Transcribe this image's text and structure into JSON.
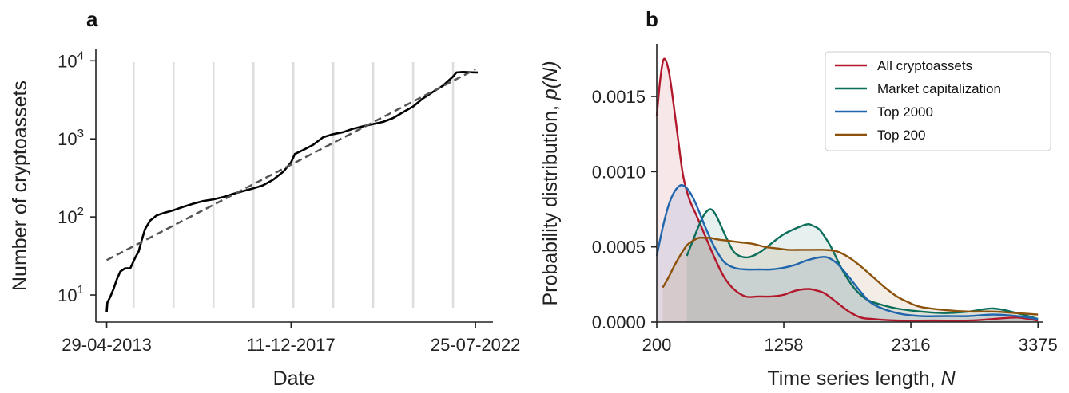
{
  "chart_data": [
    {
      "panel": "a",
      "type": "line",
      "xlabel": "Date",
      "ylabel": "Number of cryptoassets",
      "yscale": "log",
      "ylim": [
        4.5,
        14000
      ],
      "xlim": [
        "2013-01-20",
        "2023-01-01"
      ],
      "xticks": [
        {
          "date": "2013-04-29",
          "label": "29-04-2013"
        },
        {
          "date": "2017-12-11",
          "label": "11-12-2017"
        },
        {
          "date": "2022-07-25",
          "label": "25-07-2022"
        }
      ],
      "yticks": [
        {
          "value": 10,
          "base": "10",
          "exp": "1"
        },
        {
          "value": 100,
          "base": "10",
          "exp": "2"
        },
        {
          "value": 1000,
          "base": "10",
          "exp": "3"
        },
        {
          "value": 10000,
          "base": "10",
          "exp": "4"
        }
      ],
      "vlines_color": "#dddddd",
      "vlines_dates": [
        "2014-01-01",
        "2015-01-01",
        "2016-01-01",
        "2017-01-01",
        "2018-01-01",
        "2019-01-01",
        "2020-01-01",
        "2021-01-01",
        "2022-01-01"
      ],
      "series": [
        {
          "style": "solid",
          "color": "#000000",
          "points": [
            [
              "2013-04-29",
              6
            ],
            [
              "2013-05-05",
              8
            ],
            [
              "2013-06-01",
              9.5
            ],
            [
              "2013-07-01",
              12
            ],
            [
              "2013-08-01",
              16
            ],
            [
              "2013-09-01",
              20
            ],
            [
              "2013-10-15",
              22
            ],
            [
              "2013-12-01",
              22
            ],
            [
              "2014-01-15",
              30
            ],
            [
              "2014-02-15",
              36
            ],
            [
              "2014-03-15",
              50
            ],
            [
              "2014-04-15",
              70
            ],
            [
              "2014-06-01",
              90
            ],
            [
              "2014-08-01",
              105
            ],
            [
              "2014-10-01",
              112
            ],
            [
              "2015-01-01",
              122
            ],
            [
              "2015-04-01",
              135
            ],
            [
              "2015-07-01",
              148
            ],
            [
              "2015-10-01",
              160
            ],
            [
              "2016-01-01",
              168
            ],
            [
              "2016-04-01",
              180
            ],
            [
              "2016-07-01",
              198
            ],
            [
              "2016-10-01",
              215
            ],
            [
              "2017-01-01",
              232
            ],
            [
              "2017-04-01",
              255
            ],
            [
              "2017-07-01",
              300
            ],
            [
              "2017-10-01",
              380
            ],
            [
              "2017-12-11",
              500
            ],
            [
              "2018-01-15",
              640
            ],
            [
              "2018-04-01",
              720
            ],
            [
              "2018-07-01",
              840
            ],
            [
              "2018-10-01",
              1050
            ],
            [
              "2019-01-01",
              1150
            ],
            [
              "2019-04-01",
              1220
            ],
            [
              "2019-07-01",
              1350
            ],
            [
              "2019-10-01",
              1450
            ],
            [
              "2020-01-01",
              1550
            ],
            [
              "2020-04-01",
              1650
            ],
            [
              "2020-07-01",
              1850
            ],
            [
              "2020-10-01",
              2200
            ],
            [
              "2021-01-01",
              2600
            ],
            [
              "2021-04-01",
              3300
            ],
            [
              "2021-07-01",
              4000
            ],
            [
              "2021-10-01",
              4800
            ],
            [
              "2022-01-01",
              6300
            ],
            [
              "2022-02-01",
              7100
            ],
            [
              "2022-04-01",
              7200
            ],
            [
              "2022-07-25",
              7100
            ],
            [
              "2022-08-15",
              7100
            ]
          ]
        },
        {
          "style": "dashed",
          "color": "#555555",
          "points": [
            [
              "2013-04-29",
              28
            ],
            [
              "2022-07-25",
              7800
            ]
          ]
        }
      ]
    },
    {
      "panel": "b",
      "type": "area",
      "xlabel": "Time series length, ",
      "xlabel_var": "N",
      "ylabel": "Probability distribution, ",
      "ylabel_var": "p(N)",
      "xlim": [
        200,
        3420
      ],
      "ylim": [
        0,
        0.00185
      ],
      "xticks": [
        200,
        1258,
        2316,
        3375
      ],
      "yticks": [
        {
          "value": 0,
          "label": "0.0000"
        },
        {
          "value": 0.0005,
          "label": "0.0005"
        },
        {
          "value": 0.001,
          "label": "0.0010"
        },
        {
          "value": 0.0015,
          "label": "0.0015"
        }
      ],
      "legend": "top-right",
      "series": [
        {
          "name": "All cryptoassets",
          "color": "#b2182b",
          "x": [
            200,
            230,
            260,
            300,
            340,
            380,
            420,
            470,
            530,
            600,
            680,
            760,
            840,
            940,
            1040,
            1150,
            1250,
            1360,
            1460,
            1530,
            1600,
            1700,
            1800,
            1900,
            2000,
            2200,
            2500,
            2800,
            3000,
            3200,
            3375
          ],
          "y": [
            0.00137,
            0.00162,
            0.00175,
            0.00167,
            0.00145,
            0.0012,
            0.00097,
            0.00082,
            0.00071,
            0.00058,
            0.00043,
            0.0003,
            0.00022,
            0.00017,
            0.00017,
            0.00017,
            0.00018,
            0.00021,
            0.00022,
            0.00021,
            0.00019,
            0.00013,
            7e-05,
            3e-05,
            2e-05,
            1e-05,
            1e-05,
            1e-05,
            2e-05,
            3e-05,
            1e-05
          ]
        },
        {
          "name": "Market capitalization",
          "color": "#0b6e5a",
          "x": [
            450,
            500,
            550,
            600,
            650,
            700,
            780,
            850,
            950,
            1050,
            1150,
            1250,
            1350,
            1450,
            1500,
            1560,
            1650,
            1750,
            1850,
            1950,
            2050,
            2200,
            2400,
            2600,
            2800,
            3000,
            3200,
            3375
          ],
          "y": [
            0.00044,
            0.00054,
            0.00064,
            0.00072,
            0.00075,
            0.0007,
            0.00056,
            0.00046,
            0.00043,
            0.00046,
            0.00052,
            0.00058,
            0.00062,
            0.00065,
            0.00064,
            0.00061,
            0.0005,
            0.00034,
            0.00022,
            0.00015,
            0.00012,
            9e-05,
            7e-05,
            6e-05,
            7e-05,
            9e-05,
            6e-05,
            2e-05
          ]
        },
        {
          "name": "Top 2000",
          "color": "#2166ac",
          "x": [
            200,
            250,
            300,
            350,
            400,
            450,
            500,
            550,
            600,
            680,
            760,
            850,
            950,
            1050,
            1150,
            1250,
            1350,
            1450,
            1550,
            1620,
            1700,
            1800,
            1900,
            2000,
            2200,
            2400,
            2600,
            2800,
            3000,
            3200,
            3375
          ],
          "y": [
            0.00044,
            0.00063,
            0.00078,
            0.00087,
            0.00091,
            0.00089,
            0.00083,
            0.00074,
            0.00064,
            0.0005,
            0.0004,
            0.00036,
            0.00035,
            0.00035,
            0.00035,
            0.00036,
            0.00038,
            0.00041,
            0.00043,
            0.00043,
            0.00039,
            0.0003,
            0.0002,
            0.00012,
            6e-05,
            4e-05,
            4e-05,
            4e-05,
            5e-05,
            4e-05,
            2e-05
          ]
        },
        {
          "name": "Top 200",
          "color": "#8c510a",
          "x": [
            250,
            300,
            350,
            400,
            450,
            500,
            550,
            600,
            650,
            700,
            800,
            900,
            1000,
            1100,
            1200,
            1300,
            1400,
            1500,
            1600,
            1700,
            1800,
            1900,
            2000,
            2100,
            2200,
            2300,
            2400,
            2600,
            2800,
            3000,
            3200,
            3375
          ],
          "y": [
            0.00023,
            0.0003,
            0.00038,
            0.00045,
            0.00051,
            0.00054,
            0.00056,
            0.00056,
            0.00056,
            0.00055,
            0.00054,
            0.00053,
            0.00052,
            0.0005,
            0.00049,
            0.00048,
            0.00048,
            0.00048,
            0.00048,
            0.00047,
            0.00043,
            0.00037,
            0.0003,
            0.00023,
            0.00017,
            0.00013,
            0.0001,
            8e-05,
            7e-05,
            7e-05,
            6e-05,
            5e-05
          ]
        }
      ]
    }
  ]
}
